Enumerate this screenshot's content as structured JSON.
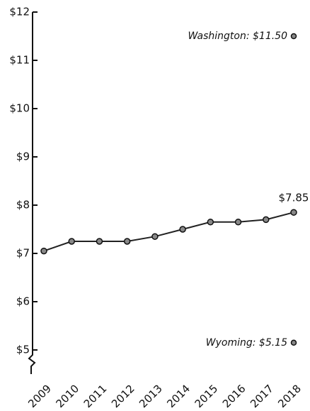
{
  "chart_data": {
    "type": "line",
    "categories": [
      "2009",
      "2010",
      "2011",
      "2012",
      "2013",
      "2014",
      "2015",
      "2016",
      "2017",
      "2018"
    ],
    "values": [
      7.05,
      7.25,
      7.25,
      7.25,
      7.35,
      7.5,
      7.65,
      7.65,
      7.7,
      7.85
    ],
    "value_labels": [
      null,
      null,
      null,
      null,
      null,
      null,
      null,
      null,
      null,
      "$7.85"
    ],
    "color": "#222",
    "ylim": [
      4.5,
      12
    ],
    "yticks": [
      {
        "value": 5,
        "label": "$5"
      },
      {
        "value": 6,
        "label": "$6"
      },
      {
        "value": 7,
        "label": "$7"
      },
      {
        "value": 8,
        "label": "$8"
      },
      {
        "value": 9,
        "label": "$9"
      },
      {
        "value": 10,
        "label": "$10"
      },
      {
        "value": 11,
        "label": "$11"
      },
      {
        "value": 12,
        "label": "$12"
      }
    ],
    "annotations": [
      {
        "text": "Washington: $11.50",
        "value": 11.5
      },
      {
        "text": "Wyoming: $5.15",
        "value": 5.15
      }
    ]
  }
}
